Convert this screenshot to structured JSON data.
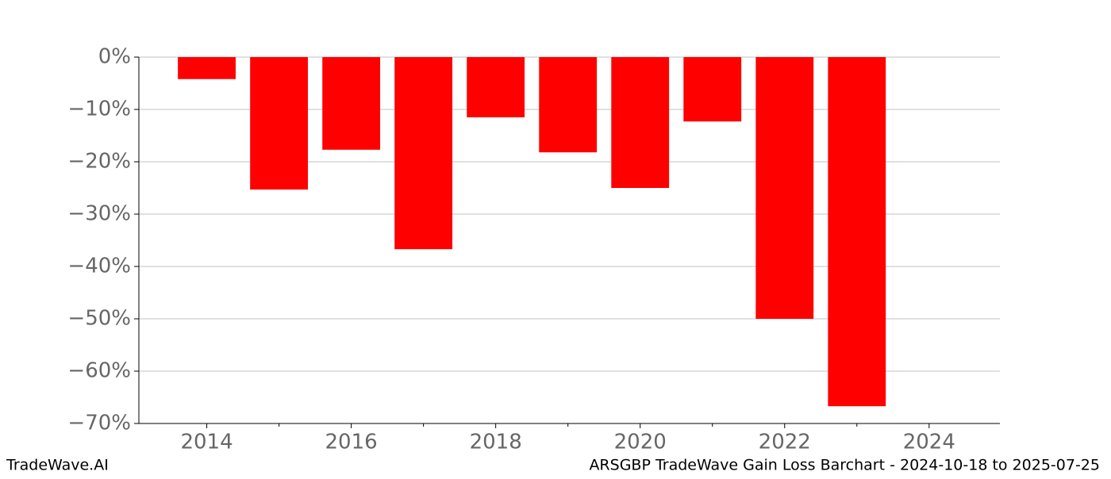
{
  "chart_data": {
    "type": "bar",
    "x": [
      2014,
      2015,
      2016,
      2017,
      2018,
      2019,
      2020,
      2021,
      2022,
      2023
    ],
    "values": [
      -4.2,
      -25.3,
      -17.7,
      -36.7,
      -11.5,
      -18.2,
      -25.0,
      -12.3,
      -50.0,
      -66.7
    ],
    "color": "#ff0000",
    "xlim": [
      2013.06,
      2024.98
    ],
    "xticks": [
      2014,
      2016,
      2018,
      2020,
      2022,
      2024
    ],
    "xminor_ticks": [
      2015,
      2017,
      2019,
      2021,
      2023
    ],
    "ylim": [
      -70,
      0
    ],
    "yticks": [
      {
        "value": 0,
        "label": "0%"
      },
      {
        "value": -10,
        "label": "−10%"
      },
      {
        "value": -20,
        "label": "−20%"
      },
      {
        "value": -30,
        "label": "−30%"
      },
      {
        "value": -40,
        "label": "−40%"
      },
      {
        "value": -50,
        "label": "−50%"
      },
      {
        "value": -60,
        "label": "−60%"
      },
      {
        "value": -70,
        "label": "−70%"
      }
    ],
    "grid": true,
    "footer_left": "TradeWave.AI",
    "footer_right": "ARSGBP TradeWave Gain Loss Barchart - 2024-10-18 to 2025-07-25"
  }
}
